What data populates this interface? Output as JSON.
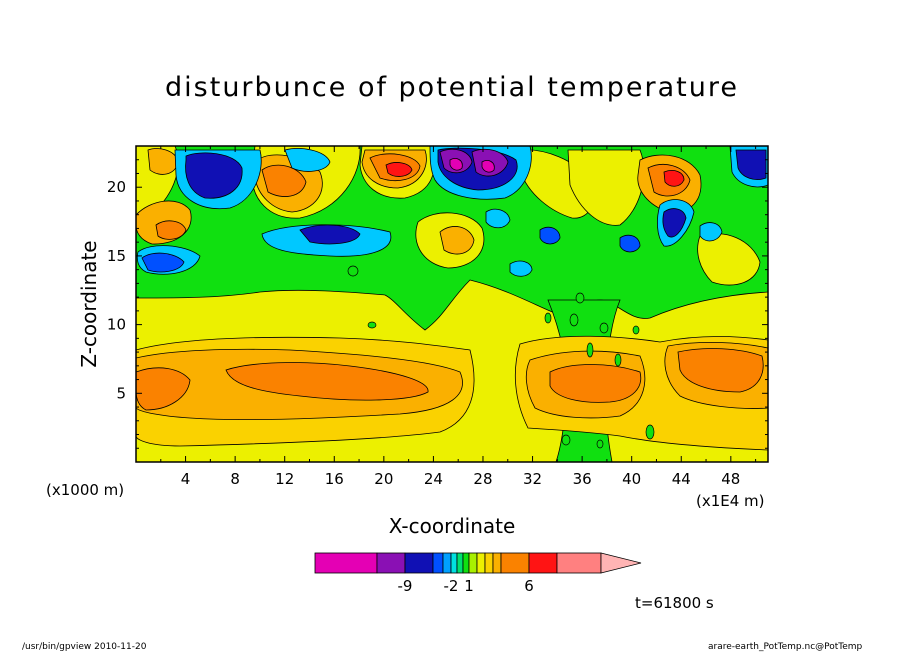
{
  "chart_data": {
    "type": "heatmap",
    "title": "disturbunce of potential temperature",
    "xlabel": "X-coordinate",
    "ylabel": "Z-coordinate",
    "x_unit_left": "(x1000 m)",
    "x_unit_right": "(x1E4 m)",
    "x_ticks": [
      "4",
      "8",
      "12",
      "16",
      "20",
      "24",
      "28",
      "32",
      "36",
      "40",
      "44",
      "48"
    ],
    "y_ticks": [
      "5",
      "10",
      "15",
      "20"
    ],
    "xlim": [
      0,
      51
    ],
    "ylim": [
      0,
      23
    ],
    "colorbar_labels": [
      "-9",
      "-2",
      "1",
      "6"
    ],
    "colorbar_colors": [
      "#e400b4",
      "#8a10b4",
      "#1010b4",
      "#0050ff",
      "#00a0ff",
      "#00e0e0",
      "#00e070",
      "#10e010",
      "#a8f000",
      "#ecf000",
      "#fad200",
      "#fab000",
      "#fa8200",
      "#ff1414",
      "#ff8080",
      "#ffb4b4"
    ],
    "contour_colors": {
      "pink_deep": "#e400b4",
      "purple": "#8a10b4",
      "navy": "#1010b4",
      "blue": "#0050ff",
      "cyan": "#00c8ff",
      "green": "#10e010",
      "yellow": "#ecf000",
      "light_orange": "#fad200",
      "orange": "#fab000",
      "dark_orange": "#fa8200",
      "red": "#ff1414"
    }
  },
  "annotation": {
    "time": "t=61800 s"
  },
  "footer": {
    "left": "/usr/bin/gpview  2010-11-20",
    "right": "arare-earth_PotTemp.nc@PotTemp"
  }
}
